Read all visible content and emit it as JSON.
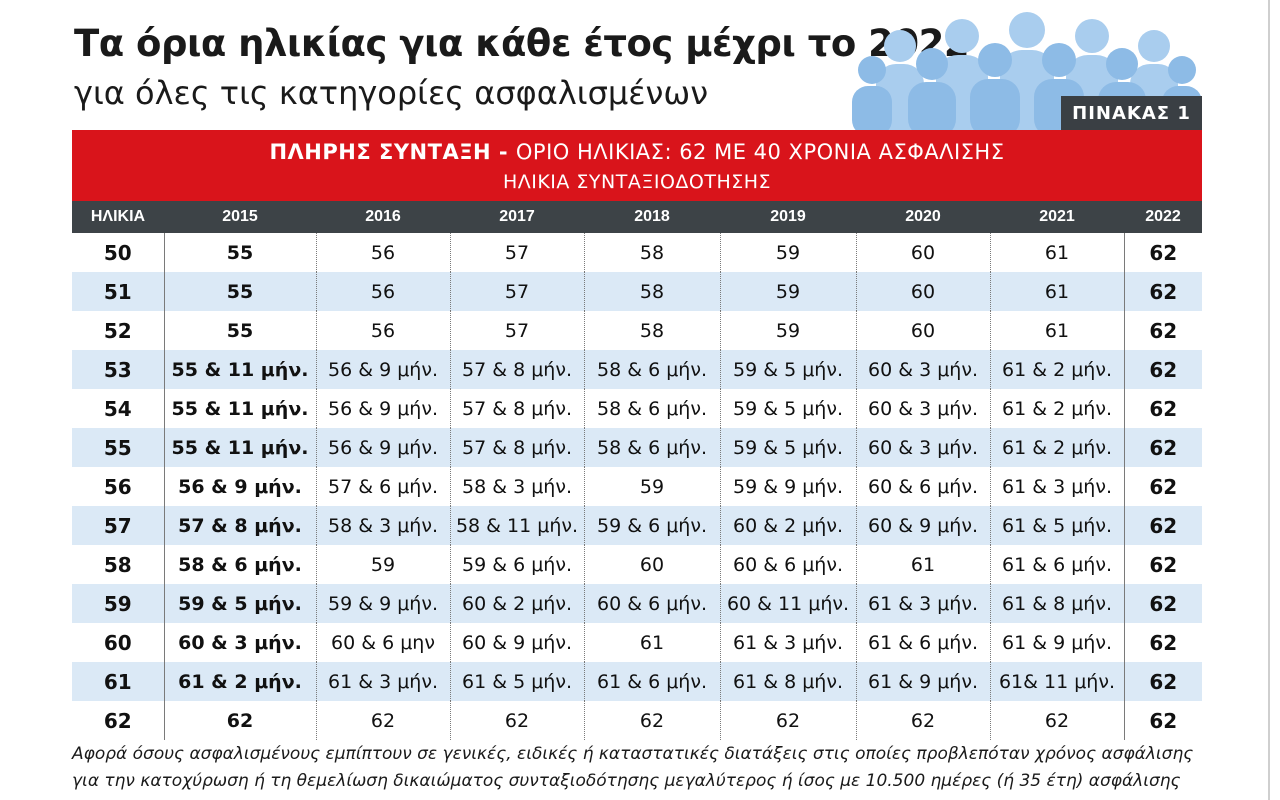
{
  "title": "Τα όρια ηλικίας για κάθε έτος μέχρι το 2022",
  "subtitle": "για όλες τις κατηγορίες ασφαλισμένων",
  "table_label": "ΠΙΝΑΚΑΣ 1",
  "banner": {
    "bold": "ΠΛΗΡΗΣ ΣΥΝΤΑΞΗ -",
    "rest": "ΟΡΙΟ ΗΛΙΚΙΑΣ: 62 ΜΕ 40 ΧΡΟΝΙΑ ΑΣΦΑΛΙΣΗΣ",
    "line2": "ΗΛΙΚΙΑ ΣΥΝΤΑΞΙΟΔΟΤΗΣΗΣ"
  },
  "colors": {
    "banner_red": "#d9141b",
    "header_dark": "#3d4347",
    "row_alt": "#dbe9f6",
    "people_blue": "#a9cdee"
  },
  "icons": {
    "people": "people-crowd-icon"
  },
  "headers": [
    "ΗΛΙΚΙΑ",
    "2015",
    "2016",
    "2017",
    "2018",
    "2019",
    "2020",
    "2021",
    "2022"
  ],
  "rows": [
    [
      "50",
      "55",
      "56",
      "57",
      "58",
      "59",
      "60",
      "61",
      "62"
    ],
    [
      "51",
      "55",
      "56",
      "57",
      "58",
      "59",
      "60",
      "61",
      "62"
    ],
    [
      "52",
      "55",
      "56",
      "57",
      "58",
      "59",
      "60",
      "61",
      "62"
    ],
    [
      "53",
      "55 & 11 μήν.",
      "56 & 9 μήν.",
      "57 & 8 μήν.",
      "58 & 6 μήν.",
      "59 & 5 μήν.",
      "60 & 3 μήν.",
      "61 & 2 μήν.",
      "62"
    ],
    [
      "54",
      "55 & 11 μήν.",
      "56 & 9 μήν.",
      "57 & 8 μήν.",
      "58 & 6 μήν.",
      "59 & 5 μήν.",
      "60 & 3 μήν.",
      "61 & 2 μήν.",
      "62"
    ],
    [
      "55",
      "55 & 11 μήν.",
      "56 & 9 μήν.",
      "57 & 8 μήν.",
      "58 & 6 μήν.",
      "59 & 5 μήν.",
      "60 & 3 μήν.",
      "61 & 2 μήν.",
      "62"
    ],
    [
      "56",
      "56 & 9 μήν.",
      "57 & 6 μήν.",
      "58 & 3 μήν.",
      "59",
      "59 & 9 μήν.",
      "60 & 6 μήν.",
      "61 & 3 μήν.",
      "62"
    ],
    [
      "57",
      "57 & 8 μήν.",
      "58 & 3 μήν.",
      "58 & 11 μήν.",
      "59 & 6 μήν.",
      "60 & 2 μήν.",
      "60 & 9 μήν.",
      "61 & 5 μήν.",
      "62"
    ],
    [
      "58",
      "58 & 6 μήν.",
      "59",
      "59 & 6 μήν.",
      "60",
      "60 & 6 μήν.",
      "61",
      "61 & 6 μήν.",
      "62"
    ],
    [
      "59",
      "59 & 5 μήν.",
      "59 & 9 μήν.",
      "60 & 2 μήν.",
      "60 & 6 μήν.",
      "60 & 11 μήν.",
      "61 & 3 μήν.",
      "61 & 8 μήν.",
      "62"
    ],
    [
      "60",
      "60 & 3 μήν.",
      "60 & 6 μην",
      "60 & 9 μήν.",
      "61",
      "61 & 3 μήν.",
      "61 & 6 μήν.",
      "61 & 9 μήν.",
      "62"
    ],
    [
      "61",
      "61 & 2 μήν.",
      "61 & 3 μήν.",
      "61 & 5 μήν.",
      "61 & 6 μήν.",
      "61 & 8 μήν.",
      "61 & 9 μήν.",
      "61& 11 μήν.",
      "62"
    ],
    [
      "62",
      "62",
      "62",
      "62",
      "62",
      "62",
      "62",
      "62",
      "62"
    ]
  ],
  "footnote": [
    "Αφορά όσους ασφαλισμένους εμπίπτουν σε γενικές, ειδικές ή καταστατικές διατάξεις στις οποίες προβλεπόταν χρόνος ασφάλισης",
    "για την κατοχύρωση ή τη θεμελίωση δικαιώματος συνταξιοδότησης μεγαλύτερος ή ίσος με 10.500 ημέρες (ή 35 έτη) ασφάλισης"
  ]
}
